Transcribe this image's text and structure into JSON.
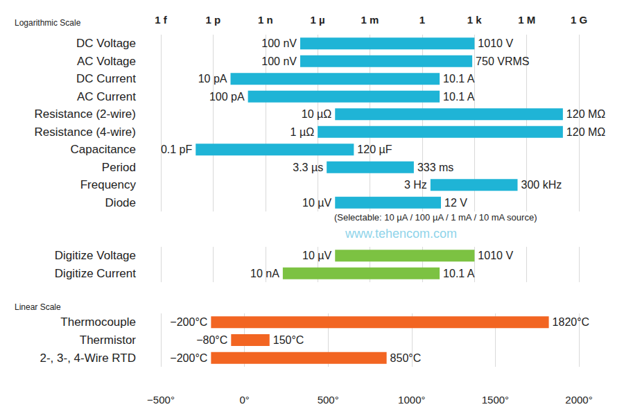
{
  "chart_data": [
    {
      "type": "bar",
      "title": "Logarithmic Scale",
      "orientation": "horizontal",
      "log": "x",
      "grid": true,
      "data_labels": true,
      "color": "#1fb4d6",
      "categories": [
        "DC Voltage",
        "AC Voltage",
        "DC Current",
        "AC Current",
        "Resistance (2-wire)",
        "Resistance (4-wire)",
        "Capacitance",
        "Period",
        "Frequency",
        "Diode"
      ],
      "values": [
        [
          1e-07,
          1010
        ],
        [
          1e-07,
          750
        ],
        [
          1e-11,
          10.1
        ],
        [
          1e-10,
          10.1
        ],
        [
          1e-05,
          120000000.0
        ],
        [
          1e-06,
          120000000.0
        ],
        [
          1e-13,
          0.00012
        ],
        [
          3.3e-06,
          0.333
        ],
        [
          3,
          300000
        ],
        [
          1e-05,
          12
        ]
      ],
      "value_labels": [
        [
          "100 nV",
          "1010 V"
        ],
        [
          "100 nV",
          "750 VRMS"
        ],
        [
          "10 pA",
          "10.1 A"
        ],
        [
          "100 pA",
          "10.1 A"
        ],
        [
          "10 µΩ",
          "120 MΩ"
        ],
        [
          "1 µΩ",
          "120 MΩ"
        ],
        [
          "0.1 pF",
          "120 µF"
        ],
        [
          "3.3 µs",
          "333 ms"
        ],
        [
          "3 Hz",
          "300 kHz"
        ],
        [
          "10 µV",
          "12 V"
        ]
      ],
      "xlim": [
        1e-15,
        1000000000.0
      ],
      "xticks": [
        {
          "value": 1e-15,
          "label": "1 f"
        },
        {
          "value": 1e-12,
          "label": "1 p"
        },
        {
          "value": 1e-09,
          "label": "1 n"
        },
        {
          "value": 1e-06,
          "label": "1 µ"
        },
        {
          "value": 0.001,
          "label": "1 m"
        },
        1,
        {
          "value": 1000,
          "label": "1 k"
        },
        {
          "value": 1000000,
          "label": "1 M"
        },
        {
          "value": 1000000000,
          "label": "1 G"
        }
      ],
      "annotations": [
        "(Selectable: 10 µA / 100 µA / 1 mA / 10 mA source)",
        "www.tehencom.com"
      ]
    },
    {
      "type": "bar",
      "orientation": "horizontal",
      "log": "x",
      "grid": true,
      "data_labels": true,
      "tick_labels": false,
      "color": "#7cc242",
      "categories": [
        "Digitize Voltage",
        "Digitize Current"
      ],
      "values": [
        [
          1e-05,
          1010
        ],
        [
          1e-08,
          10.1
        ]
      ],
      "value_labels": [
        [
          "10 µV",
          "1010 V"
        ],
        [
          "10 nA",
          "10.1 A"
        ]
      ],
      "xlim": [
        1e-15,
        1000000000.0
      ],
      "xticks": [
        {
          "value": 1e-15,
          "label": "1 f"
        },
        {
          "value": 1e-12,
          "label": "1 p"
        },
        {
          "value": 1e-09,
          "label": "1 n"
        },
        {
          "value": 1e-06,
          "label": "1 µ"
        },
        {
          "value": 0.001,
          "label": "1 m"
        },
        1,
        {
          "value": 1000,
          "label": "1 k"
        },
        {
          "value": 1000000,
          "label": "1 M"
        },
        {
          "value": 1000000000,
          "label": "1 G"
        }
      ]
    },
    {
      "type": "bar",
      "title": "Linear Scale",
      "orientation": "horizontal",
      "grid": true,
      "data_labels": true,
      "color": "#f26522",
      "categories": [
        "Thermocouple",
        "Thermistor",
        "2-, 3-, 4-Wire RTD"
      ],
      "values": [
        [
          -200,
          1820
        ],
        [
          -80,
          150
        ],
        [
          -200,
          850
        ]
      ],
      "value_labels": [
        [
          "−200°C",
          "1820°C"
        ],
        [
          "−80°C",
          "150°C"
        ],
        [
          "−200°C",
          "850°C"
        ]
      ],
      "xlim": [
        -500,
        2000
      ],
      "xticks": [
        {
          "value": -500,
          "label": "−500°"
        },
        {
          "value": 0,
          "label": "0°"
        },
        {
          "value": 500,
          "label": "500°"
        },
        {
          "value": 1000,
          "label": "1000°"
        },
        {
          "value": 1500,
          "label": "1500°"
        },
        {
          "value": 2000,
          "label": "2000°"
        }
      ]
    }
  ]
}
